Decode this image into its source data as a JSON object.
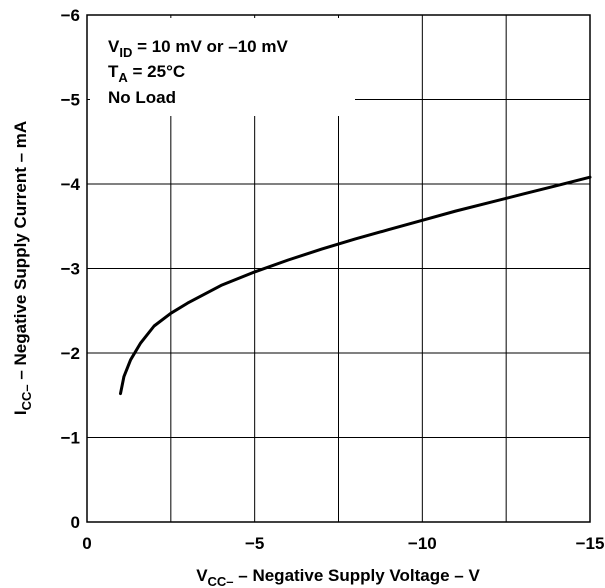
{
  "chart_data": {
    "type": "line",
    "xlabel": {
      "main": "V",
      "sub": "CC–",
      "rest": " – Negative Supply Voltage – V"
    },
    "ylabel": {
      "main": "I",
      "sub": "CC–",
      "rest": " – Negative Supply Current – mA"
    },
    "xlim": [
      0,
      -15
    ],
    "ylim": [
      0,
      -6
    ],
    "x_ticks": [
      0,
      -5,
      -10,
      -15
    ],
    "x_tick_labels": [
      "0",
      "−5",
      "−10",
      "−15"
    ],
    "y_ticks": [
      0,
      -1,
      -2,
      -3,
      -4,
      -5,
      -6
    ],
    "y_tick_labels": [
      "0",
      "−1",
      "−2",
      "−3",
      "−4",
      "−5",
      "−6"
    ],
    "grid": true,
    "annotations": [
      {
        "main": "V",
        "sub": "ID",
        "rest": " = 10 mV or –10 mV"
      },
      {
        "main": "T",
        "sub": "A",
        "rest": " = 25°C"
      },
      {
        "main": "No Load",
        "sub": "",
        "rest": ""
      }
    ],
    "series": [
      {
        "x": [
          -1.0,
          -1.1,
          -1.3,
          -1.6,
          -2.0,
          -2.5,
          -3.0,
          -4.0,
          -5.0,
          -6.0,
          -7.0,
          -8.0,
          -9.0,
          -10.0,
          -11.0,
          -12.0,
          -13.0,
          -14.0,
          -15.0
        ],
        "y": [
          -1.52,
          -1.72,
          -1.92,
          -2.12,
          -2.32,
          -2.47,
          -2.59,
          -2.8,
          -2.96,
          -3.1,
          -3.23,
          -3.35,
          -3.46,
          -3.57,
          -3.68,
          -3.78,
          -3.88,
          -3.98,
          -4.08
        ]
      }
    ]
  }
}
